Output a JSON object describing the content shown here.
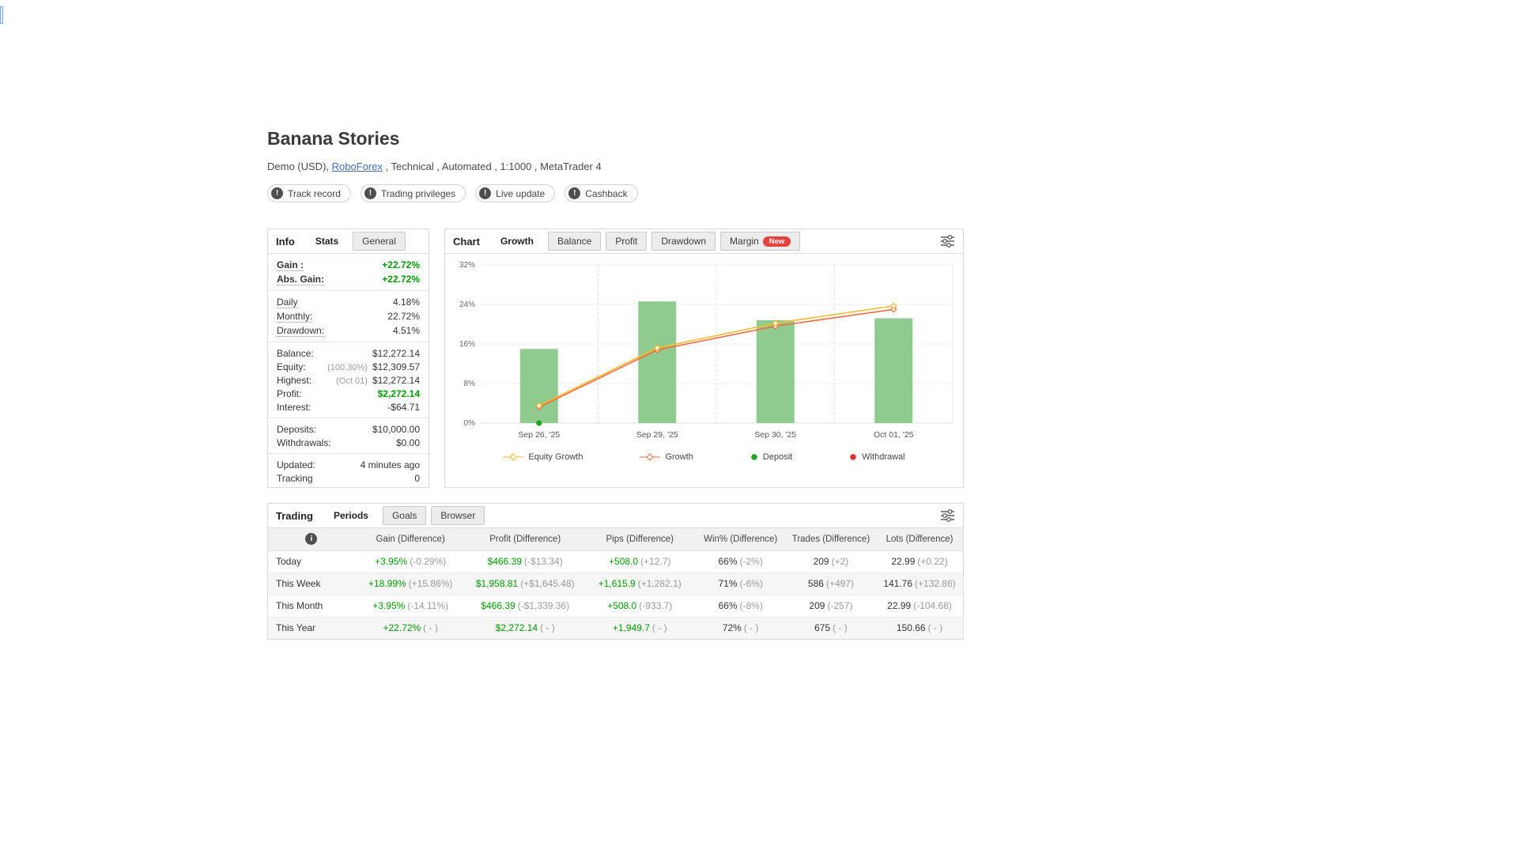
{
  "colors": {
    "green": "#009900",
    "dark": "#333333",
    "grey": "#9a9a9a",
    "link": "#3f6db4",
    "badge_new": "#e8423f"
  },
  "icons": {
    "alert_glyph": "!",
    "info_glyph": "i",
    "settings_icon": "sliders-icon"
  },
  "page": {
    "title": "Banana Stories",
    "subtitle": {
      "prefix": "Demo (USD), ",
      "link": "RoboForex",
      "suffix": " , Technical , Automated , 1:1000 , MetaTrader 4"
    },
    "badges": [
      {
        "label": "Track record"
      },
      {
        "label": "Trading privileges"
      },
      {
        "label": "Live update"
      },
      {
        "label": "Cashback"
      }
    ]
  },
  "info_panel": {
    "title": "Info",
    "tabs": [
      {
        "label": "Stats",
        "active": true
      },
      {
        "label": "General",
        "active": false
      }
    ],
    "groups": [
      [
        {
          "label": "Gain :",
          "value": "+22.72%",
          "color": "green",
          "tooltip": true
        },
        {
          "label": "Abs. Gain:",
          "value": "+22.72%",
          "color": "green",
          "tooltip": true
        }
      ],
      [
        {
          "label": "Daily",
          "value": "4.18%",
          "tooltip": true
        },
        {
          "label": "Monthly:",
          "value": "22.72%",
          "tooltip": true
        },
        {
          "label": "Drawdown:",
          "value": "4.51%",
          "tooltip": true
        }
      ],
      [
        {
          "label": "Balance:",
          "value": "$12,272.14"
        },
        {
          "label": "Equity:",
          "pre": "(100.30%) ",
          "value": "$12,309.57"
        },
        {
          "label": "Highest:",
          "pre": "(Oct 01) ",
          "value": "$12,272.14"
        },
        {
          "label": "Profit:",
          "value": "$2,272.14",
          "color": "green"
        },
        {
          "label": "Interest:",
          "value": "-$64.71"
        }
      ],
      [
        {
          "label": "Deposits:",
          "value": "$10,000.00"
        },
        {
          "label": "Withdrawals:",
          "value": "$0.00"
        }
      ],
      [
        {
          "label": "Updated:",
          "value": "4 minutes ago"
        },
        {
          "label": "Tracking",
          "value": "0"
        }
      ]
    ]
  },
  "chart_panel": {
    "title": "Chart",
    "tabs": [
      {
        "label": "Growth",
        "active": true
      },
      {
        "label": "Balance",
        "active": false
      },
      {
        "label": "Profit",
        "active": false
      },
      {
        "label": "Drawdown",
        "active": false
      },
      {
        "label": "Margin",
        "active": false,
        "badge": "New"
      }
    ]
  },
  "chart_data": {
    "type": "bar",
    "title": "Growth",
    "categories": [
      "Sep 26, '25",
      "Sep 29, '25",
      "Sep 30, '25",
      "Oct 01, '25"
    ],
    "series": [
      {
        "name": "Growth bars",
        "type": "bar",
        "color": "#8fca8f",
        "values": [
          15.0,
          24.6,
          20.8,
          21.2
        ]
      },
      {
        "name": "Growth",
        "type": "line",
        "color": "#f2683c",
        "values": [
          3.2,
          14.8,
          19.6,
          23.0
        ]
      },
      {
        "name": "Equity Growth",
        "type": "line",
        "color": "#fdb92c",
        "values": [
          3.5,
          15.2,
          20.2,
          23.7
        ]
      }
    ],
    "markers": [
      {
        "type": "deposit",
        "category_index": 0,
        "value": 0,
        "color": "#1fa51f"
      }
    ],
    "xlabel": "",
    "ylabel": "",
    "ylim": [
      0,
      32
    ],
    "yticks": [
      {
        "v": 0,
        "label": "0%"
      },
      {
        "v": 8,
        "label": "8%"
      },
      {
        "v": 16,
        "label": "16%"
      },
      {
        "v": 24,
        "label": "24%"
      },
      {
        "v": 32,
        "label": "32%"
      }
    ],
    "grid": true,
    "legend_position": "bottom",
    "legend": [
      {
        "label": "Equity Growth",
        "marker": "diamond",
        "color": "#fdb92c"
      },
      {
        "label": "Growth",
        "marker": "diamond",
        "color": "#f2683c"
      },
      {
        "label": "Deposit",
        "marker": "dot",
        "color": "#1fa51f"
      },
      {
        "label": "Withdrawal",
        "marker": "dot",
        "color": "#e03131"
      }
    ]
  },
  "trading_panel": {
    "title": "Trading",
    "tabs": [
      {
        "label": "Periods",
        "active": true
      },
      {
        "label": "Goals",
        "active": false
      },
      {
        "label": "Browser",
        "active": false
      }
    ]
  },
  "periods_table": {
    "columns": [
      "Gain (Difference)",
      "Profit (Difference)",
      "Pips (Difference)",
      "Win% (Difference)",
      "Trades (Difference)",
      "Lots (Difference)"
    ],
    "rows": [
      {
        "label": "Today",
        "cells": [
          {
            "main": "+3.95%",
            "diff": "(-0.29%)",
            "color": "green"
          },
          {
            "main": "$466.39",
            "diff": "(-$13.34)",
            "color": "green"
          },
          {
            "main": "+508.0",
            "diff": "(+12.7)",
            "color": "green"
          },
          {
            "main": "66%",
            "diff": "(-2%)",
            "color": "dark"
          },
          {
            "main": "209",
            "diff": "(+2)",
            "color": "dark"
          },
          {
            "main": "22.99",
            "diff": "(+0.22)",
            "color": "dark"
          }
        ]
      },
      {
        "label": "This Week",
        "cells": [
          {
            "main": "+18.99%",
            "diff": "(+15.86%)",
            "color": "green"
          },
          {
            "main": "$1,958.81",
            "diff": "(+$1,645.48)",
            "color": "green"
          },
          {
            "main": "+1,615.9",
            "diff": "(+1,282.1)",
            "color": "green"
          },
          {
            "main": "71%",
            "diff": "(-6%)",
            "color": "dark"
          },
          {
            "main": "586",
            "diff": "(+497)",
            "color": "dark"
          },
          {
            "main": "141.76",
            "diff": "(+132.86)",
            "color": "dark"
          }
        ]
      },
      {
        "label": "This Month",
        "cells": [
          {
            "main": "+3.95%",
            "diff": "(-14.11%)",
            "color": "green"
          },
          {
            "main": "$466.39",
            "diff": "(-$1,339.36)",
            "color": "green"
          },
          {
            "main": "+508.0",
            "diff": "(-933.7)",
            "color": "green"
          },
          {
            "main": "66%",
            "diff": "(-8%)",
            "color": "dark"
          },
          {
            "main": "209",
            "diff": "(-257)",
            "color": "dark"
          },
          {
            "main": "22.99",
            "diff": "(-104.68)",
            "color": "dark"
          }
        ]
      },
      {
        "label": "This Year",
        "cells": [
          {
            "main": "+22.72%",
            "diff": "( - )",
            "color": "green"
          },
          {
            "main": "$2,272.14",
            "diff": "( - )",
            "color": "green"
          },
          {
            "main": "+1,949.7",
            "diff": "( - )",
            "color": "green"
          },
          {
            "main": "72%",
            "diff": "( - )",
            "color": "dark"
          },
          {
            "main": "675",
            "diff": "( - )",
            "color": "dark"
          },
          {
            "main": "150.66",
            "diff": "( - )",
            "color": "dark"
          }
        ]
      }
    ]
  }
}
